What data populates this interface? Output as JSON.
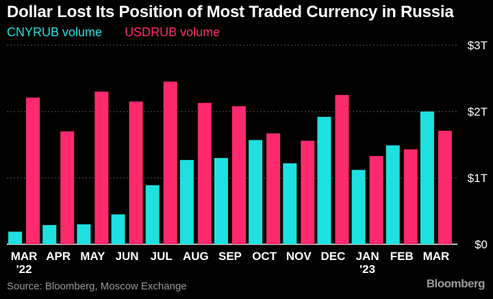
{
  "chart_data": {
    "type": "bar",
    "title": "Dollar Lost Its Position of Most Traded Currency in Russia",
    "categories": [
      "MAR '22",
      "APR",
      "MAY",
      "JUN",
      "JUL",
      "AUG",
      "SEP",
      "OCT",
      "NOV",
      "DEC",
      "JAN '23",
      "FEB",
      "MAR"
    ],
    "category_lines": [
      [
        "MAR",
        "'22"
      ],
      [
        "APR"
      ],
      [
        "MAY"
      ],
      [
        "JUN"
      ],
      [
        "JUL"
      ],
      [
        "AUG"
      ],
      [
        "SEP"
      ],
      [
        "OCT"
      ],
      [
        "NOV"
      ],
      [
        "DEC"
      ],
      [
        "JAN",
        "'23"
      ],
      [
        "FEB"
      ],
      [
        "MAR"
      ]
    ],
    "series": [
      {
        "name": "CNYRUB volume",
        "color": "#1ee0e0",
        "values": [
          0.19,
          0.29,
          0.3,
          0.45,
          0.89,
          1.27,
          1.3,
          1.57,
          1.22,
          1.92,
          1.12,
          1.49,
          2.0
        ]
      },
      {
        "name": "USDRUB volume",
        "color": "#ff2a6d",
        "values": [
          2.21,
          1.7,
          2.3,
          2.15,
          2.45,
          2.13,
          2.08,
          1.67,
          1.56,
          2.25,
          1.33,
          1.43,
          1.71
        ]
      }
    ],
    "yaxis": {
      "position": "right",
      "ticks": [
        0,
        1,
        2,
        3
      ],
      "tick_labels": [
        "$0",
        "$1T",
        "$2T",
        "$3T"
      ],
      "ylim": [
        0,
        3
      ]
    },
    "xlabel": "",
    "ylabel": "",
    "grid": true,
    "legend": "top-left"
  },
  "source": "Source: Bloomberg, Moscow Exchange",
  "brand": "Bloomberg"
}
